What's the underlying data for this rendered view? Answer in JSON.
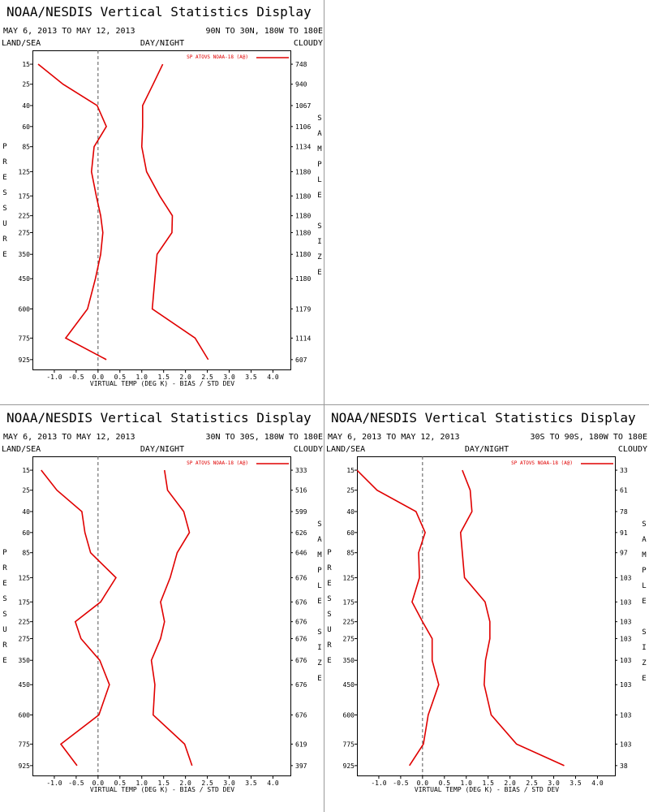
{
  "chart_data": [
    {
      "type": "line",
      "title": "NOAA/NESDIS Vertical Statistics Display",
      "date_range": "MAY 6, 2013 TO MAY 12, 2013",
      "region": "90N TO 30N, 180W TO 180E",
      "land_sea": "LAND/SEA",
      "day_night": "DAY/NIGHT",
      "cloudy": "CLOUDY",
      "ylabel": "PRESSURE",
      "y2label": "SAMPLE SIZE",
      "xlabel": "VIRTUAL TEMP (DEG K) - BIAS / STD DEV",
      "xlim": [
        -1.5,
        4.4
      ],
      "xticks": [
        {
          "value": -1,
          "label": "-1.0"
        },
        -0.5,
        {
          "value": 0,
          "label": "0.0"
        },
        0.5,
        {
          "value": 1,
          "label": "1.0"
        },
        1.5,
        {
          "value": 2,
          "label": "2.0"
        },
        2.5,
        {
          "value": 3,
          "label": "3.0"
        },
        3.5,
        {
          "value": 4,
          "label": "4.0"
        }
      ],
      "ylim": [
        10,
        1000
      ],
      "yscale": "power",
      "yexponent": 0.3,
      "yinverted": true,
      "yticks": [
        15,
        25,
        40,
        60,
        85,
        125,
        175,
        225,
        275,
        350,
        450,
        600,
        775,
        925
      ],
      "y": [
        15,
        25,
        40,
        60,
        85,
        125,
        175,
        225,
        275,
        350,
        450,
        600,
        775,
        925
      ],
      "sample_size": [
        748,
        940,
        1067,
        1106,
        1134,
        1180,
        1180,
        1180,
        1180,
        1180,
        1180,
        1179,
        1114,
        607
      ],
      "series": [
        {
          "name": "SP ATOVS NOAA-18 (A@)",
          "color": "#e00000",
          "bias": [
            -1.37,
            -0.8,
            -0.02,
            0.19,
            -0.09,
            -0.15,
            -0.04,
            0.06,
            0.11,
            0.06,
            -0.06,
            -0.24,
            -0.74,
            0.19
          ],
          "std_dev": [
            1.48,
            1.26,
            1.02,
            1.02,
            1.0,
            1.11,
            1.41,
            1.7,
            1.69,
            1.35,
            1.3,
            1.24,
            2.22,
            2.52
          ]
        }
      ]
    },
    {
      "type": "line",
      "title": "NOAA/NESDIS Vertical Statistics Display",
      "date_range": "MAY 6, 2013 TO MAY 12, 2013",
      "region": "30N TO 30S, 180W TO 180E",
      "land_sea": "LAND/SEA",
      "day_night": "DAY/NIGHT",
      "cloudy": "CLOUDY",
      "ylabel": "PRESSURE",
      "y2label": "SAMPLE SIZE",
      "xlabel": "VIRTUAL TEMP (DEG K) - BIAS / STD DEV",
      "xlim": [
        -1.5,
        4.4
      ],
      "xticks": [
        {
          "value": -1,
          "label": "-1.0"
        },
        -0.5,
        {
          "value": 0,
          "label": "0.0"
        },
        0.5,
        {
          "value": 1,
          "label": "1.0"
        },
        1.5,
        {
          "value": 2,
          "label": "2.0"
        },
        2.5,
        {
          "value": 3,
          "label": "3.0"
        },
        3.5,
        {
          "value": 4,
          "label": "4.0"
        }
      ],
      "ylim": [
        10,
        1000
      ],
      "yscale": "power",
      "yexponent": 0.3,
      "yinverted": true,
      "yticks": [
        15,
        25,
        40,
        60,
        85,
        125,
        175,
        225,
        275,
        350,
        450,
        600,
        775,
        925
      ],
      "y": [
        15,
        25,
        40,
        60,
        85,
        125,
        175,
        225,
        275,
        350,
        450,
        600,
        775,
        925
      ],
      "sample_size": [
        333,
        516,
        599,
        626,
        646,
        676,
        676,
        676,
        676,
        676,
        676,
        676,
        619,
        397
      ],
      "series": [
        {
          "name": "SP ATOVS NOAA-18 (A@)",
          "color": "#e00000",
          "bias": [
            -1.3,
            -0.94,
            -0.37,
            -0.3,
            -0.17,
            0.41,
            0.06,
            -0.52,
            -0.39,
            0.04,
            0.26,
            0.02,
            -0.85,
            -0.48
          ],
          "std_dev": [
            1.52,
            1.59,
            1.96,
            2.09,
            1.81,
            1.65,
            1.43,
            1.52,
            1.43,
            1.22,
            1.3,
            1.26,
            1.98,
            2.15
          ]
        }
      ]
    },
    {
      "type": "line",
      "title": "NOAA/NESDIS Vertical Statistics Display",
      "date_range": "MAY 6, 2013 TO MAY 12, 2013",
      "region": "30S TO 90S, 180W TO 180E",
      "land_sea": "LAND/SEA",
      "day_night": "DAY/NIGHT",
      "cloudy": "CLOUDY",
      "ylabel": "PRESSURE",
      "y2label": "SAMPLE SIZE",
      "xlabel": "VIRTUAL TEMP (DEG K) - BIAS / STD DEV",
      "xlim": [
        -1.5,
        4.4
      ],
      "xticks": [
        {
          "value": -1,
          "label": "-1.0"
        },
        -0.5,
        {
          "value": 0,
          "label": "0.0"
        },
        0.5,
        {
          "value": 1,
          "label": "1.0"
        },
        1.5,
        {
          "value": 2,
          "label": "2.0"
        },
        2.5,
        {
          "value": 3,
          "label": "3.0"
        },
        3.5,
        {
          "value": 4,
          "label": "4.0"
        }
      ],
      "ylim": [
        10,
        1000
      ],
      "yscale": "power",
      "yexponent": 0.3,
      "yinverted": true,
      "yticks": [
        15,
        25,
        40,
        60,
        85,
        125,
        175,
        225,
        275,
        350,
        450,
        600,
        775,
        925
      ],
      "y": [
        15,
        25,
        40,
        60,
        85,
        125,
        175,
        225,
        275,
        350,
        450,
        600,
        775,
        925
      ],
      "sample_size": [
        33,
        61,
        78,
        91,
        97,
        103,
        103,
        103,
        103,
        103,
        103,
        103,
        103,
        38
      ],
      "series": [
        {
          "name": "SP ATOVS NOAA-18 (A@)",
          "color": "#e00000",
          "bias": [
            -1.5,
            -1.04,
            -0.15,
            0.06,
            -0.09,
            -0.07,
            -0.24,
            0.0,
            0.22,
            0.22,
            0.37,
            0.13,
            0.02,
            -0.3
          ],
          "std_dev": [
            0.91,
            1.09,
            1.13,
            0.87,
            0.91,
            0.96,
            1.43,
            1.54,
            1.54,
            1.44,
            1.41,
            1.57,
            2.15,
            3.24
          ]
        }
      ]
    }
  ]
}
